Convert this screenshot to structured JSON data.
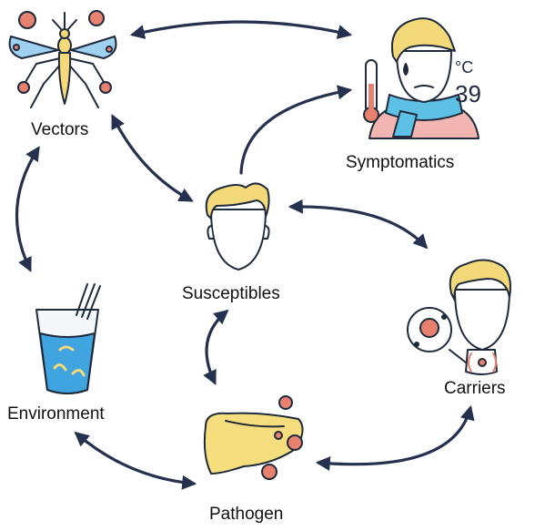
{
  "nodes": {
    "vectors": {
      "label": "Vectors",
      "icon": "mosquito-icon"
    },
    "symptomatics": {
      "label": "Symptomatics",
      "icon": "feverish-person-icon",
      "thermo_unit": "°C",
      "thermo_value": "39"
    },
    "susceptibles": {
      "label": "Susceptibles",
      "icon": "person-head-icon"
    },
    "environment": {
      "label": "Environment",
      "icon": "water-glass-icon"
    },
    "carriers": {
      "label": "Carriers",
      "icon": "carrier-person-icon"
    },
    "pathogen": {
      "label": "Pathogen",
      "icon": "liver-pathogen-icon"
    }
  },
  "edges": [
    {
      "from": "vectors",
      "to": "symptomatics",
      "bidirectional": true
    },
    {
      "from": "susceptibles",
      "to": "symptomatics",
      "bidirectional": false
    },
    {
      "from": "vectors",
      "to": "susceptibles",
      "bidirectional": true
    },
    {
      "from": "vectors",
      "to": "environment",
      "bidirectional": true
    },
    {
      "from": "susceptibles",
      "to": "carriers",
      "bidirectional": true
    },
    {
      "from": "susceptibles",
      "to": "pathogen",
      "bidirectional": true
    },
    {
      "from": "environment",
      "to": "pathogen",
      "bidirectional": true
    },
    {
      "from": "pathogen",
      "to": "carriers",
      "bidirectional": true
    }
  ],
  "colors": {
    "arrow": "#26314f",
    "outline": "#1f2a3c",
    "hair": "#f3d97a",
    "skin": "#ffffff",
    "water": "#3fa4e0",
    "scarf": "#5fc0e6",
    "organ": "#f6de7e",
    "virus": "#e6826f",
    "wing": "#9fd0f0"
  }
}
